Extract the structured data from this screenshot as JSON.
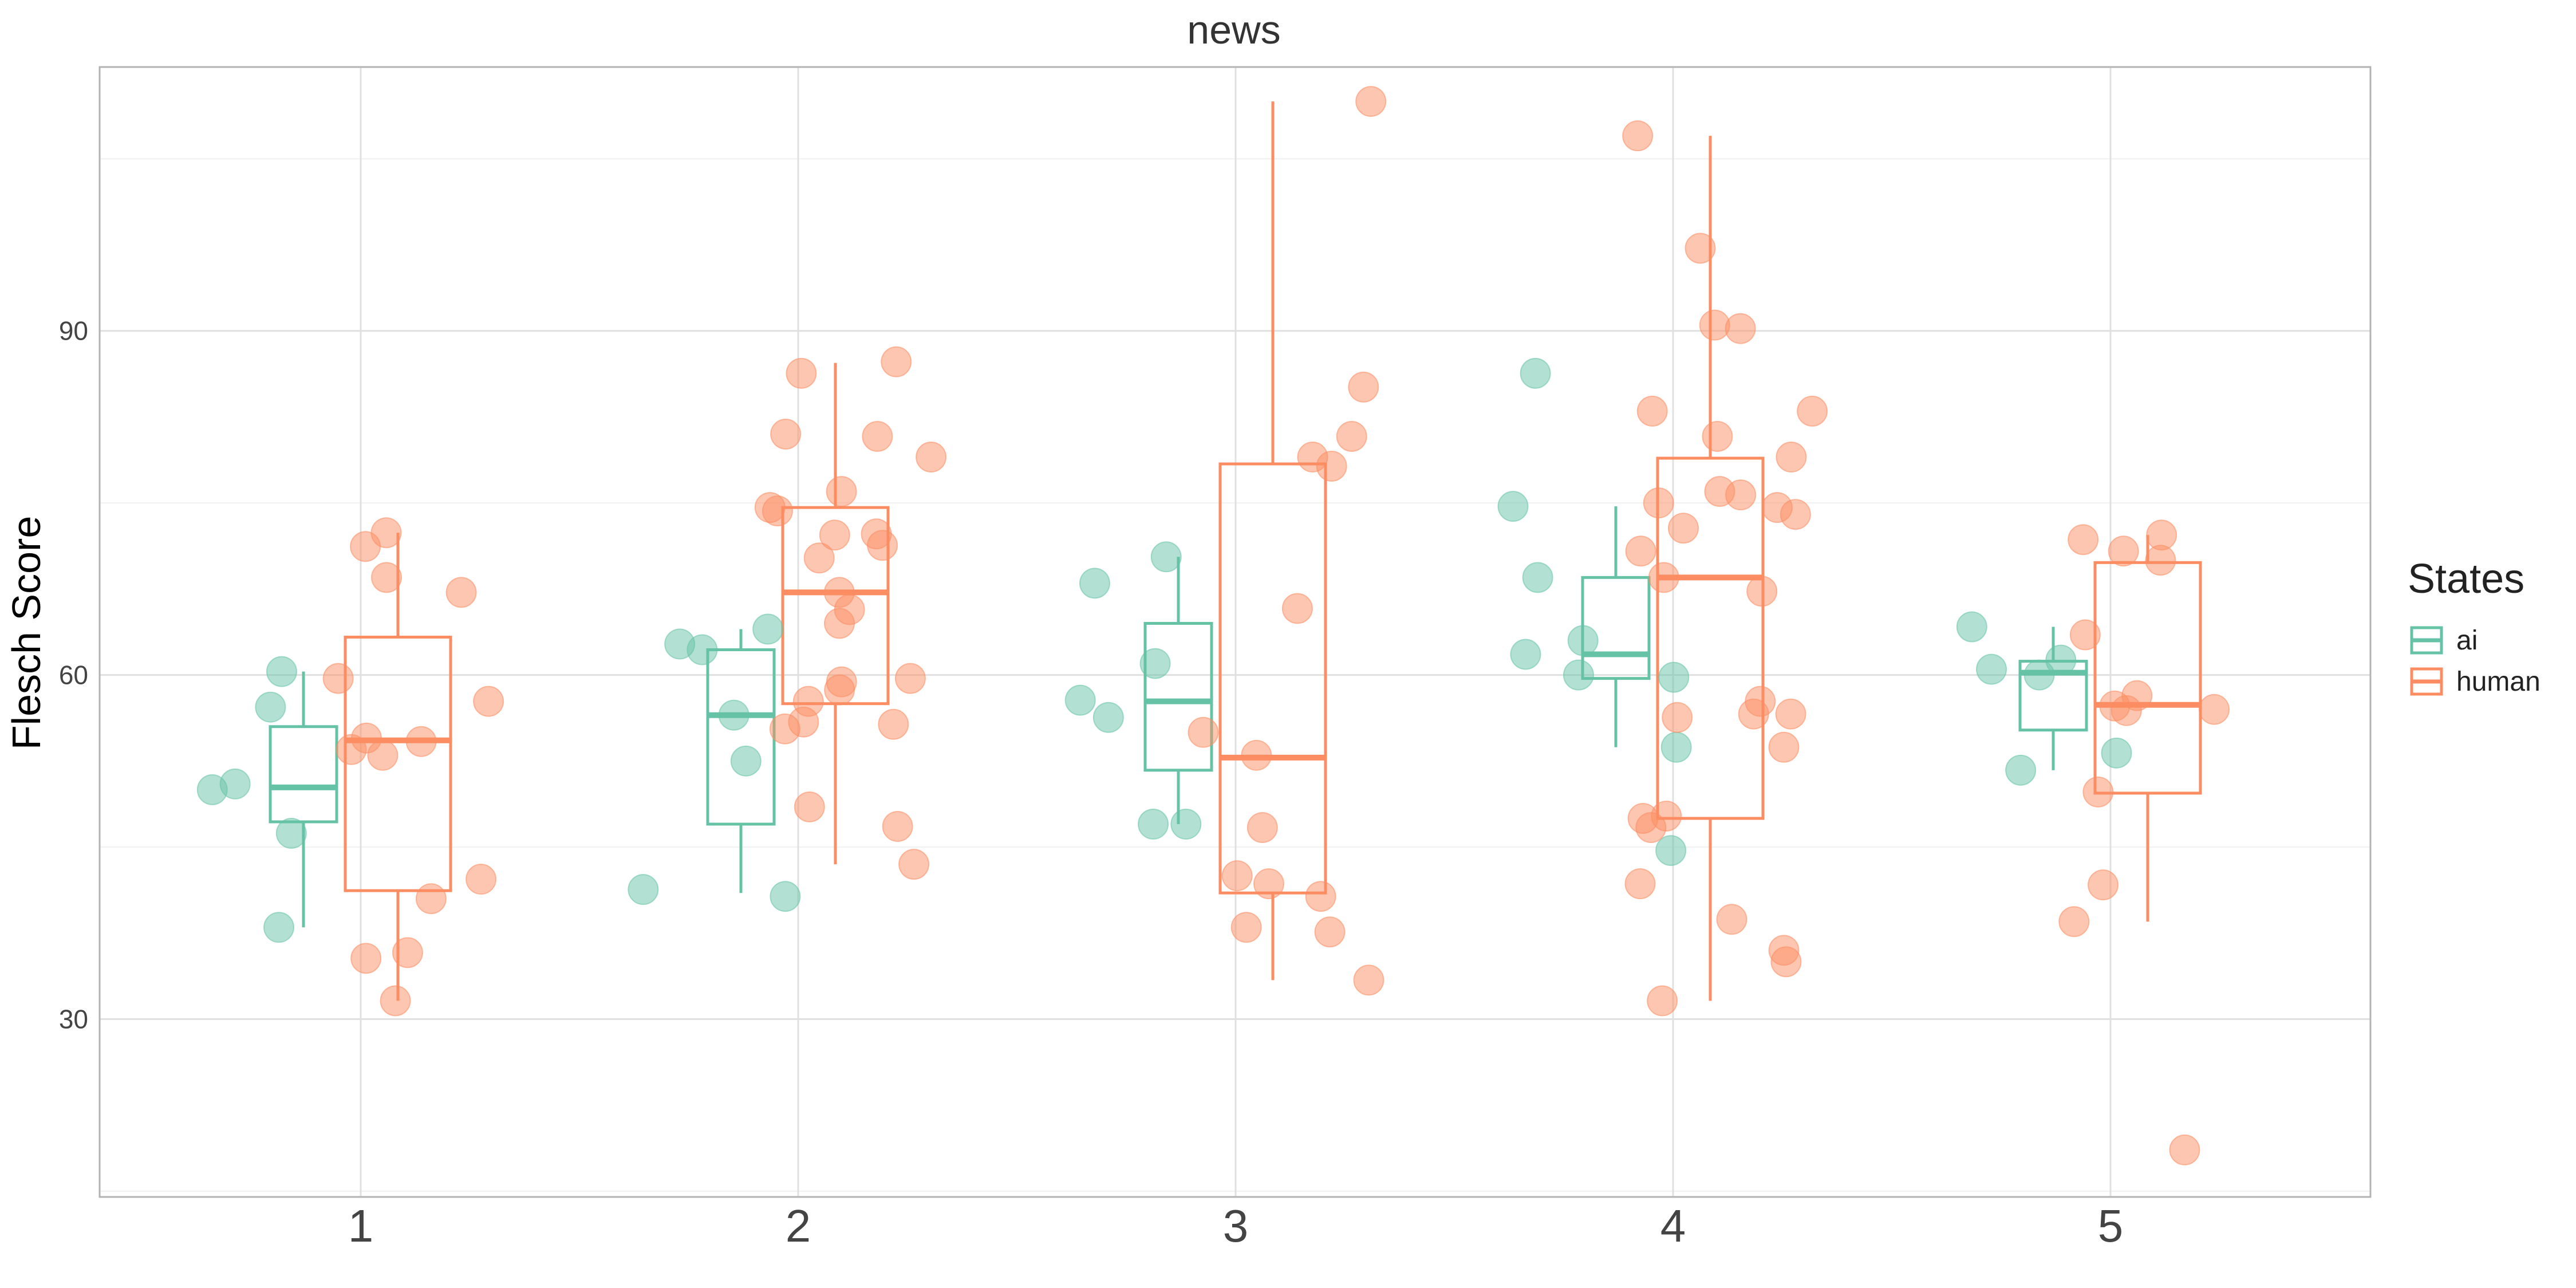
{
  "chart_data": {
    "type": "box",
    "title": "news",
    "xlabel": "",
    "ylabel": "Flesch Score",
    "categories": [
      "1",
      "2",
      "3",
      "4",
      "5"
    ],
    "ylim": [
      14.5,
      113
    ],
    "yticks": [
      30,
      60,
      90
    ],
    "grid": true,
    "legend": {
      "title": "States",
      "position": "right"
    },
    "series": [
      {
        "name": "ai",
        "color": "#66C2A5",
        "boxes": [
          {
            "category": "1",
            "whisker_low": 38,
            "q1": 47.2,
            "median": 50.2,
            "q3": 55.5,
            "whisker_high": 60.3
          },
          {
            "category": "2",
            "whisker_low": 41,
            "q1": 47,
            "median": 56.5,
            "q3": 62.2,
            "whisker_high": 64
          },
          {
            "category": "3",
            "whisker_low": 47,
            "q1": 51.7,
            "median": 57.7,
            "q3": 64.5,
            "whisker_high": 70.3
          },
          {
            "category": "4",
            "whisker_low": 53.7,
            "q1": 59.7,
            "median": 61.8,
            "q3": 68.5,
            "whisker_high": 74.7
          },
          {
            "category": "5",
            "whisker_low": 51.7,
            "q1": 55.2,
            "median": 60.2,
            "q3": 61.2,
            "whisker_high": 64.2
          }
        ],
        "points": [
          {
            "category": "1",
            "y": [
              38,
              46.2,
              50,
              50.5,
              57.2,
              60.3
            ]
          },
          {
            "category": "2",
            "y": [
              41.3,
              40.7,
              56.5,
              62.2,
              62.7,
              64,
              52.5
            ]
          },
          {
            "category": "3",
            "y": [
              57.8,
              61,
              56.3,
              47,
              68,
              70.3,
              47
            ]
          },
          {
            "category": "4",
            "y": [
              86.3,
              74.7,
              44.7,
              53.7,
              61.8,
              63,
              59.8,
              68.5,
              60
            ]
          },
          {
            "category": "5",
            "y": [
              60,
              61.3,
              60.5,
              64.2,
              53.2,
              51.7
            ]
          }
        ]
      },
      {
        "name": "human",
        "color": "#FC8D62",
        "boxes": [
          {
            "category": "1",
            "whisker_low": 31.6,
            "q1": 41.2,
            "median": 54.3,
            "q3": 63.3,
            "whisker_high": 72.4
          },
          {
            "category": "2",
            "whisker_low": 43.5,
            "q1": 57.5,
            "median": 67.2,
            "q3": 74.6,
            "whisker_high": 87.2
          },
          {
            "category": "3",
            "whisker_low": 33.4,
            "q1": 41,
            "median": 52.8,
            "q3": 78.4,
            "whisker_high": 110
          },
          {
            "category": "4",
            "whisker_low": 31.6,
            "q1": 47.5,
            "median": 68.5,
            "q3": 78.9,
            "whisker_high": 107
          },
          {
            "category": "5",
            "whisker_low": 38.5,
            "q1": 49.7,
            "median": 57.4,
            "q3": 69.8,
            "whisker_high": 72.2
          }
        ],
        "points": [
          {
            "category": "1",
            "y": [
              71.2,
              54.2,
              53,
              53.5,
              67.2,
              68.5,
              72.4,
              59.7,
              57.7,
              54.5,
              42.2,
              35.8,
              35.3,
              40.5,
              31.6
            ]
          },
          {
            "category": "2",
            "y": [
              87.3,
              80.8,
              81,
              86.3,
              76,
              74.3,
              74.6,
              72.2,
              71.3,
              72.3,
              79,
              70.2,
              67.2,
              65.7,
              64.5,
              59.7,
              59.4,
              58.7,
              57.7,
              55.9,
              55.7,
              55.3,
              48.5,
              46.8,
              43.5
            ]
          },
          {
            "category": "3",
            "y": [
              110,
              85.1,
              80.8,
              78.2,
              79,
              65.8,
              55,
              53,
              46.7,
              42.5,
              41.8,
              40.7,
              37.6,
              38,
              33.4
            ]
          },
          {
            "category": "4",
            "y": [
              107,
              97.2,
              90.2,
              90.5,
              83,
              83,
              80.8,
              79,
              75.7,
              76,
              75,
              74.6,
              74,
              72.8,
              70.8,
              68.5,
              67.3,
              57.7,
              56.6,
              56.6,
              56.3,
              53.7,
              47.7,
              47.5,
              46.7,
              41.8,
              38.7,
              36,
              35,
              31.6
            ]
          },
          {
            "category": "5",
            "y": [
              72.2,
              71.8,
              70.8,
              70,
              63.5,
              58.2,
              57.3,
              56.9,
              57,
              49.8,
              41.7,
              38.5,
              18.6
            ]
          }
        ]
      }
    ]
  }
}
